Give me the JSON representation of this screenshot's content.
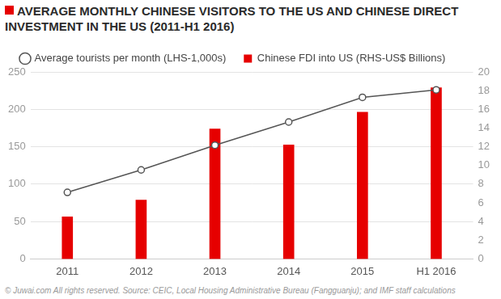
{
  "chart_data": {
    "type": "bar",
    "title": "AVERAGE MONTHLY CHINESE VISITORS TO THE US AND CHINESE DIRECT INVESTMENT IN THE US (2011-H1 2016)",
    "source": "© Juwai.com All rights reserved. Source: CEIC, Local Housing Administrative Bureau (Fangguanju); and IMF staff calculations",
    "categories": [
      "2011",
      "2012",
      "2013",
      "2014",
      "2015",
      "H1 2016"
    ],
    "series": [
      {
        "name": "Chinese FDI into US (RHS-US$ Billions)",
        "type": "bar",
        "axis": "y2",
        "color": "#e60000",
        "values": [
          4.5,
          6.3,
          13.9,
          12.2,
          15.7,
          18.3
        ]
      },
      {
        "name": "Average tourists per month (LHS-1,000s)",
        "type": "line",
        "color": "#555555",
        "marker": "circle",
        "values": [
          89,
          119,
          152,
          183,
          216,
          226
        ]
      }
    ],
    "ylim": [
      0,
      250
    ],
    "yticks": [
      0,
      50,
      100,
      150,
      200,
      250
    ],
    "y2lim": [
      0,
      20
    ],
    "y2ticks": [
      0,
      2,
      4,
      6,
      8,
      10,
      12,
      14,
      16,
      18,
      20
    ],
    "grid": true,
    "legend": "top"
  }
}
